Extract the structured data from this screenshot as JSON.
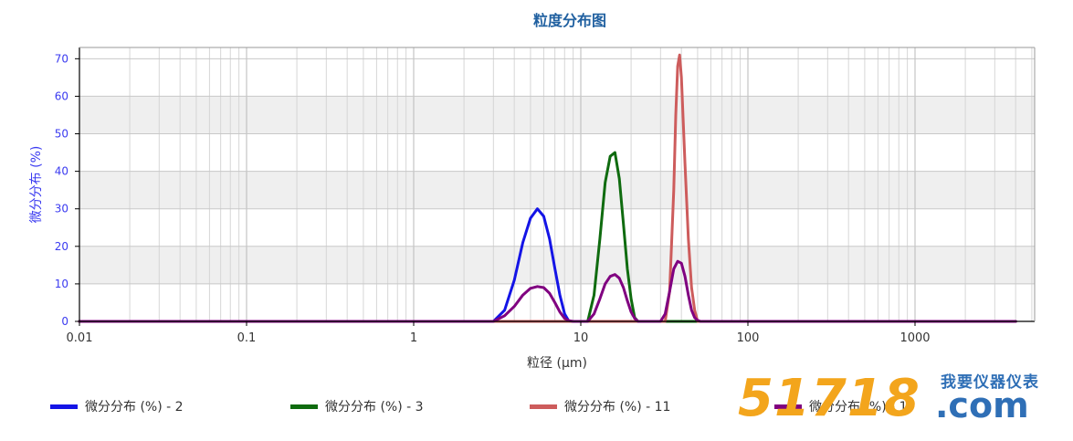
{
  "chart_data": {
    "type": "line",
    "title": "粒度分布图",
    "xlabel": "粒径 (μm)",
    "ylabel": "微分分布 (%)",
    "x_scale": "log",
    "xlim": [
      0.01,
      4000
    ],
    "ylim": [
      0,
      73
    ],
    "x_ticks": [
      0.01,
      0.1,
      1,
      10,
      100,
      1000
    ],
    "x_tick_labels": [
      "0.01",
      "0.1",
      "1",
      "10",
      "100",
      "1000"
    ],
    "y_ticks": [
      0,
      10,
      20,
      30,
      40,
      50,
      60,
      70
    ],
    "y_tick_labels": [
      "0",
      "10",
      "20",
      "30",
      "40",
      "50",
      "60",
      "70"
    ],
    "grid": true,
    "legend_position": "bottom",
    "series": [
      {
        "name": "微分分布 (%) - 2",
        "color": "#1414e6",
        "x": [
          0.01,
          3.0,
          3.5,
          4.0,
          4.5,
          5.0,
          5.5,
          6.0,
          6.5,
          7.0,
          7.5,
          8.0,
          8.5,
          4000
        ],
        "y": [
          0,
          0,
          3,
          11,
          21,
          27.5,
          30,
          28,
          22,
          14,
          7,
          2,
          0,
          0
        ]
      },
      {
        "name": "微分分布 (%) - 3",
        "color": "#0f6b0f",
        "x": [
          0.01,
          11,
          12,
          13,
          14,
          15,
          16,
          17,
          18,
          19,
          20,
          21,
          22,
          4000
        ],
        "y": [
          0,
          0,
          7,
          22,
          37,
          44,
          45,
          38,
          26,
          14,
          6,
          1,
          0,
          0
        ]
      },
      {
        "name": "微分分布 (%) - 11",
        "color": "#cd5c5c",
        "x": [
          0.01,
          32,
          34,
          36,
          37,
          38,
          39,
          40,
          42,
          44,
          46,
          48,
          50,
          4000
        ],
        "y": [
          0,
          0,
          8,
          35,
          55,
          68,
          71,
          65,
          42,
          22,
          9,
          3,
          0,
          0
        ]
      },
      {
        "name": "微分分布 (%) - 1",
        "color": "#800080",
        "x": [
          0.01,
          3.0,
          3.5,
          4.0,
          4.5,
          5.0,
          5.5,
          6.0,
          6.5,
          7.0,
          7.5,
          8.0,
          8.5,
          9.0,
          11,
          12,
          13,
          14,
          15,
          16,
          17,
          18,
          19,
          20,
          21,
          22,
          30,
          32,
          34,
          36,
          38,
          40,
          42,
          44,
          46,
          48,
          50,
          52,
          55,
          4000
        ],
        "y": [
          0,
          0,
          1.5,
          4,
          7,
          8.8,
          9.3,
          9,
          7.5,
          5,
          2.5,
          0.8,
          0.2,
          0,
          0,
          2,
          6,
          10,
          12,
          12.5,
          11.5,
          9,
          5.5,
          2.5,
          0.8,
          0,
          0,
          2,
          8,
          14,
          16,
          15.5,
          12,
          7,
          3,
          1,
          0.3,
          0,
          0,
          0
        ]
      }
    ]
  },
  "watermark": {
    "brand_number": "51718",
    "brand_cn": "我要仪器仪表",
    "brand_domain": ".com"
  }
}
